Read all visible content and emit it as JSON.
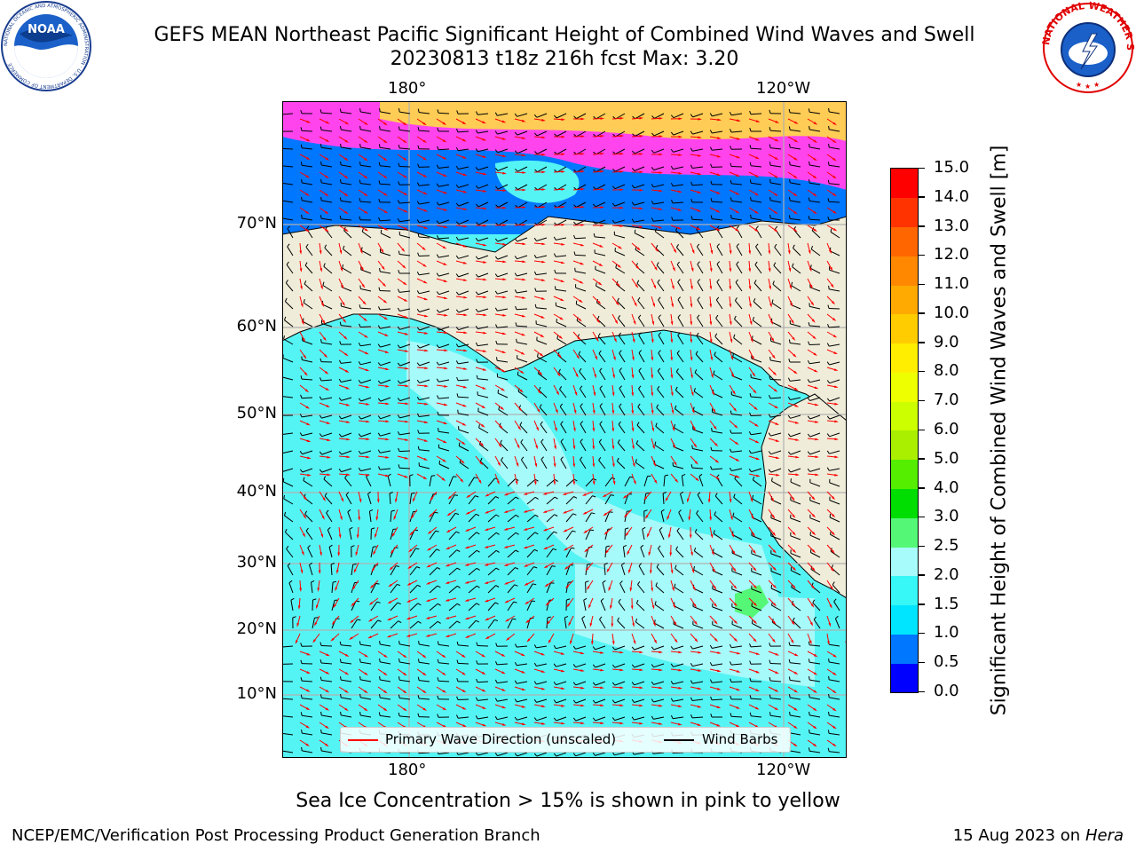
{
  "title_line1": "GEFS MEAN Northeast Pacific Significant Height of Combined Wind Waves and Swell",
  "title_line2": "20230813 t18z 216h fcst   Max: 3.20",
  "noaa_logo_text": "NOAA",
  "noaa_logo_ring_text": "NATIONAL OCEANIC AND ATMOSPHERIC ADMINISTRATION · U.S. DEPARTMENT OF COMMERCE",
  "nws_logo_ring_text": "NATIONAL WEATHER SERVICE",
  "map": {
    "top_lon_labels": [
      "180°",
      "120°W"
    ],
    "bottom_lon_labels": [
      "180°",
      "120°W"
    ],
    "lat_labels": [
      "70°N",
      "60°N",
      "50°N",
      "40°N",
      "30°N",
      "20°N",
      "10°N"
    ],
    "colors": {
      "land": "#efedd9",
      "ocean": "#55f4f4",
      "ocean_light": "#a6fafa",
      "grid": "#b0b0b0",
      "coast": "#000000"
    }
  },
  "colorbar": {
    "title": "Significant Height of Combined Wind Waves and Swell [m]",
    "tick_labels": [
      "0.0",
      "0.5",
      "1.0",
      "1.5",
      "2.0",
      "2.5",
      "3.0",
      "4.0",
      "5.0",
      "6.0",
      "7.0",
      "8.0",
      "9.0",
      "10.0",
      "11.0",
      "12.0",
      "13.0",
      "14.0",
      "15.0"
    ],
    "colors": [
      "#0000ff",
      "#0077ff",
      "#00e5ff",
      "#37f7f7",
      "#a8fbfb",
      "#55f777",
      "#00dd00",
      "#55ee00",
      "#aaee00",
      "#ccff00",
      "#eeff00",
      "#ffee00",
      "#ffcc00",
      "#ffaa00",
      "#ff8800",
      "#ff6600",
      "#ff3300",
      "#ff0000"
    ]
  },
  "legend": {
    "wave_label": "Primary Wave Direction (unscaled)",
    "wave_color": "#ff0000",
    "wind_label": "Wind Barbs",
    "wind_color": "#000000"
  },
  "bottom_note": "Sea Ice Concentration > 15% is shown in pink to yellow",
  "footer_left": "NCEP/EMC/Verification Post Processing Product Generation Branch",
  "footer_date": "15 Aug 2023 on",
  "footer_host": "Hera"
}
